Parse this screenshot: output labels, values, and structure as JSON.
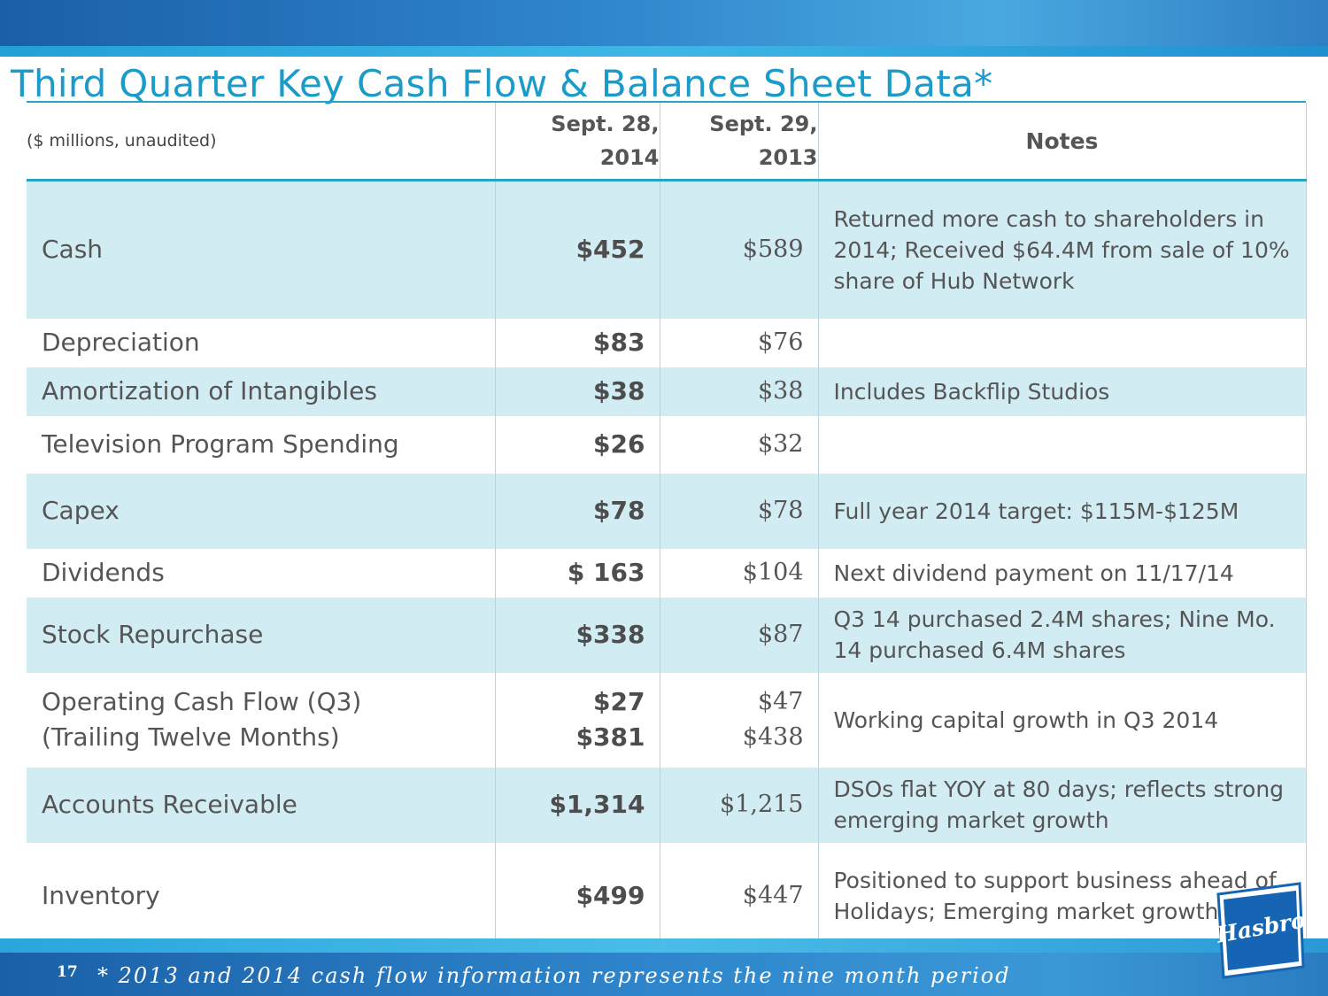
{
  "title": "Third Quarter Key Cash Flow & Balance Sheet Data*",
  "table": {
    "unit_label": "($ millions, unaudited)",
    "col_2014_line1": "Sept. 28,",
    "col_2014_line2": "2014",
    "col_2013_line1": "Sept. 29,",
    "col_2013_line2": "2013",
    "notes_header": "Notes",
    "rows": [
      {
        "label": "Cash",
        "v2014": "$452",
        "v2013": "$589",
        "note": "Returned more cash to shareholders in 2014; Received $64.4M from sale of 10% share of Hub Network"
      },
      {
        "label": "Depreciation",
        "v2014": "$83",
        "v2013": "$76",
        "note": ""
      },
      {
        "label": "Amortization of Intangibles",
        "v2014": "$38",
        "v2013": "$38",
        "note": "Includes Backflip Studios"
      },
      {
        "label": "Television Program Spending",
        "v2014": "$26",
        "v2013": "$32",
        "note": ""
      },
      {
        "label": "Capex",
        "v2014": "$78",
        "v2013": "$78",
        "note": "Full year 2014 target: $115M-$125M"
      },
      {
        "label": "Dividends",
        "v2014": "$ 163",
        "v2013": "$104",
        "note": "Next dividend payment on 11/17/14"
      },
      {
        "label": "Stock Repurchase",
        "v2014": "$338",
        "v2013": "$87",
        "note": "Q3 14 purchased 2.4M shares; Nine Mo. 14 purchased 6.4M shares"
      },
      {
        "label": "Operating Cash Flow (Q3)",
        "label2": "(Trailing Twelve Months)",
        "v2014": "$27",
        "v2014b": "$381",
        "v2013": "$47",
        "v2013b": "$438",
        "note": "Working capital growth in Q3 2014"
      },
      {
        "label": "Accounts Receivable",
        "v2014": "$1,314",
        "v2013": "$1,215",
        "note": "DSOs flat YOY at 80 days; reflects strong emerging market growth"
      },
      {
        "label": "Inventory",
        "v2014": "$499",
        "v2013": "$447",
        "note": "Positioned to support business ahead of Holidays; Emerging market growth"
      }
    ]
  },
  "footer": {
    "page_number": "17",
    "note": "* 2013 and 2014 cash flow information represents the nine month period"
  },
  "logo": {
    "text": "Hasbro",
    "color": "#1565b4"
  },
  "colors": {
    "title": "#1a9bc9",
    "row_shade": "#d2ecf4",
    "band": "#2f86cc"
  }
}
